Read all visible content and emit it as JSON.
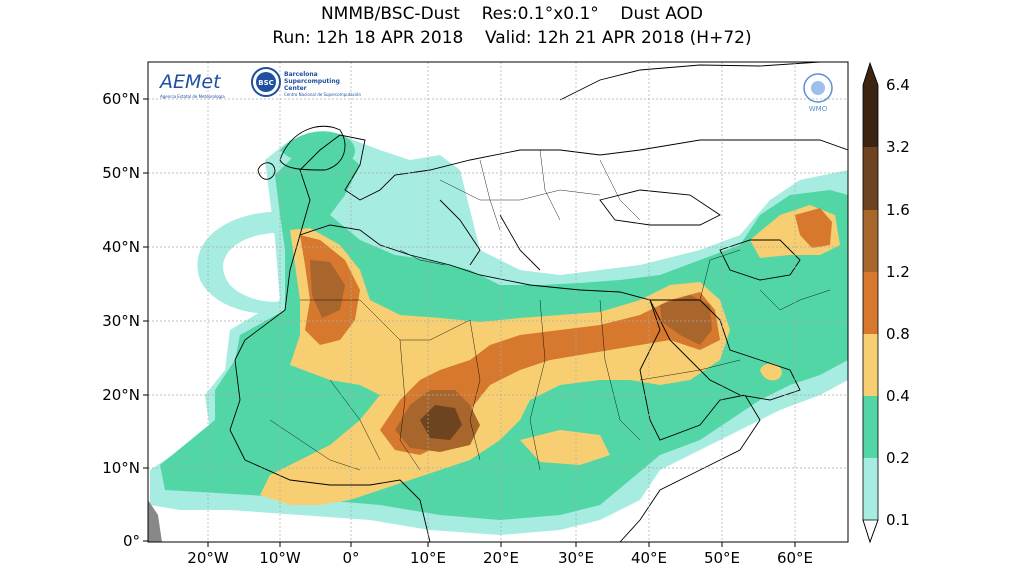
{
  "title": {
    "line1": "NMMB/BSC-Dust    Res:0.1°x0.1°    Dust AOD",
    "line2": "Run: 12h 18 APR 2018    Valid: 12h 21 APR 2018 (H+72)"
  },
  "axes": {
    "lat_ticks": [
      "60°N",
      "50°N",
      "40°N",
      "30°N",
      "20°N",
      "10°N",
      "0°"
    ],
    "lon_ticks": [
      "20°W",
      "10°W",
      "0°",
      "10°E",
      "20°E",
      "30°E",
      "40°E",
      "50°E",
      "60°E"
    ]
  },
  "colorbar": {
    "levels": [
      "6.4",
      "3.2",
      "1.6",
      "1.2",
      "0.8",
      "0.4",
      "0.2",
      "0.1"
    ],
    "colors": [
      "#3b2412",
      "#6e4420",
      "#a8662c",
      "#d6782e",
      "#f7cf72",
      "#52d6a6",
      "#a6ece0"
    ]
  },
  "logos": {
    "aemet": "AEMet",
    "aemet_sub": "Agencia Estatal de Meteorología",
    "bsc_badge": "BSC",
    "bsc_name_1": "Barcelona",
    "bsc_name_2": "Supercomputing",
    "bsc_name_3": "Center",
    "bsc_sub": "Centro Nacional de Supercomputación",
    "wmo": "WMO"
  },
  "legend_colors": {
    "ocean": "#ffffff",
    "land": "#ffffff",
    "coast": "#000000",
    "grid": "#aaaaaa"
  }
}
